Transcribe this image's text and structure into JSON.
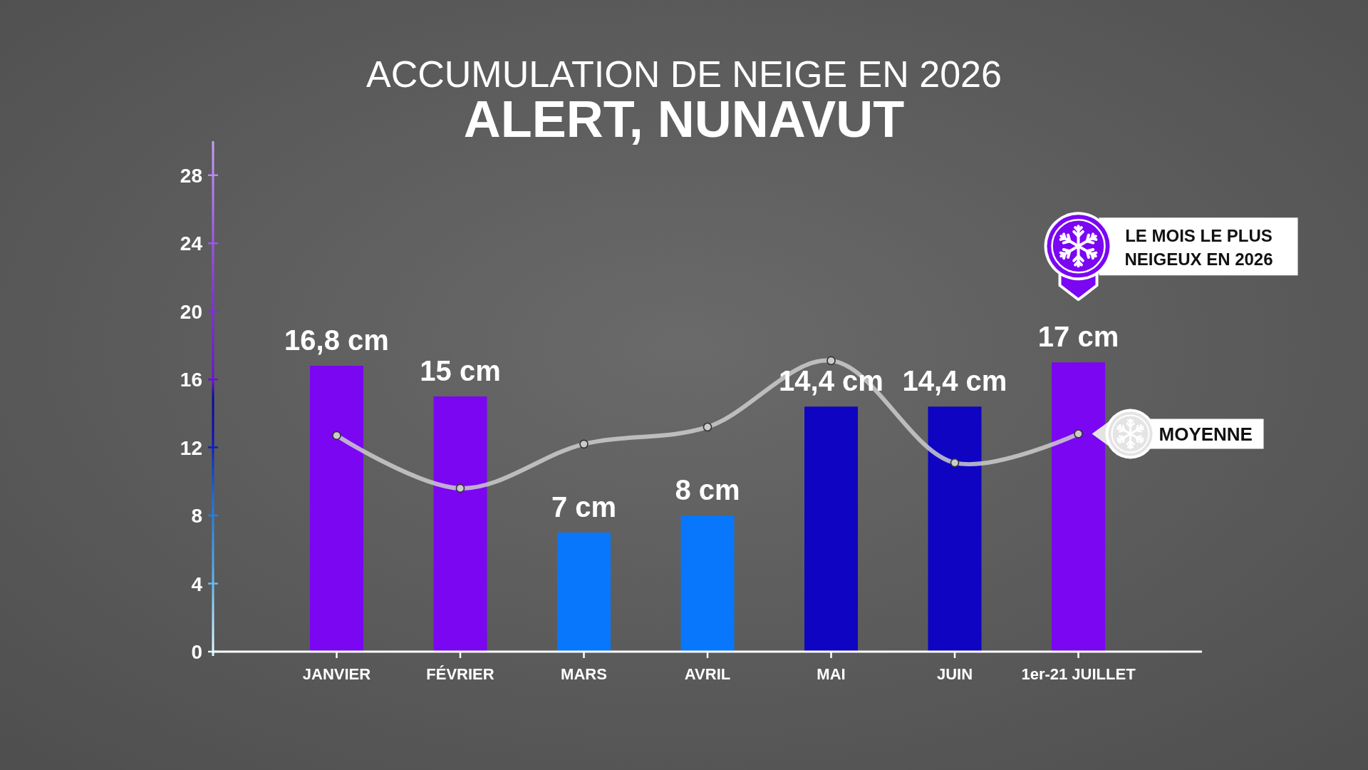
{
  "chart_data": {
    "type": "bar",
    "title": "ACCUMULATION DE NEIGE EN 2026",
    "subtitle": "ALERT, NUNAVUT",
    "categories": [
      "JANVIER",
      "FÉVRIER",
      "MARS",
      "AVRIL",
      "MAI",
      "JUIN",
      "1er-21 JUILLET"
    ],
    "series": [
      {
        "values": [
          16.8,
          15,
          7,
          8,
          14.4,
          14.4,
          17
        ],
        "colors": [
          "#7b06f2",
          "#7b06f2",
          "#0877fc",
          "#0877fc",
          "#0e04c2",
          "#0e04c2",
          "#7b06f2"
        ],
        "value_labels": [
          "16,8 cm",
          "15 cm",
          "7 cm",
          "8 cm",
          "14,4 cm",
          "14,4 cm",
          "17 cm"
        ]
      },
      {
        "type": "line",
        "name": "MOYENNE",
        "color": "#cccccc",
        "values": [
          12.7,
          9.6,
          12.2,
          13.2,
          17.1,
          11.1,
          12.8
        ],
        "marker": "circle"
      }
    ],
    "ylim": [
      0,
      30
    ],
    "yticks": [
      0,
      4,
      8,
      12,
      16,
      20,
      24,
      28
    ],
    "annotations": [
      "LE MOIS LE PLUS NEIGEUX EN 2026"
    ]
  }
}
